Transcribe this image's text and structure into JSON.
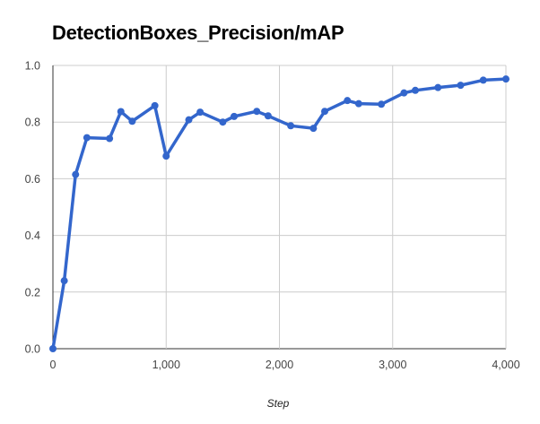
{
  "chart_data": {
    "type": "line",
    "title": "DetectionBoxes_Precision/mAP",
    "xlabel": "Step",
    "ylabel": "",
    "xlim": [
      0,
      4000
    ],
    "ylim": [
      0,
      1.0
    ],
    "x_ticks": [
      0,
      1000,
      2000,
      3000,
      4000
    ],
    "x_tick_labels": [
      "0",
      "1,000",
      "2,000",
      "3,000",
      "4,000"
    ],
    "y_ticks": [
      0.0,
      0.2,
      0.4,
      0.6,
      0.8,
      1.0
    ],
    "y_tick_labels": [
      "0.0",
      "0.2",
      "0.4",
      "0.6",
      "0.8",
      "1.0"
    ],
    "grid": true,
    "legend": "none",
    "color": "#3366cc",
    "series": [
      {
        "x": [
          0,
          100,
          200,
          300,
          500,
          600,
          700,
          900,
          1000,
          1200,
          1300,
          1500,
          1600,
          1800,
          1900,
          2100,
          2300,
          2400,
          2600,
          2700,
          2900,
          3100,
          3200,
          3400,
          3600,
          3800,
          4000
        ],
        "y": [
          0.0,
          0.24,
          0.615,
          0.745,
          0.742,
          0.837,
          0.803,
          0.858,
          0.68,
          0.808,
          0.835,
          0.8,
          0.82,
          0.838,
          0.822,
          0.787,
          0.778,
          0.838,
          0.876,
          0.865,
          0.863,
          0.903,
          0.912,
          0.922,
          0.93,
          0.948,
          0.952
        ]
      }
    ]
  }
}
